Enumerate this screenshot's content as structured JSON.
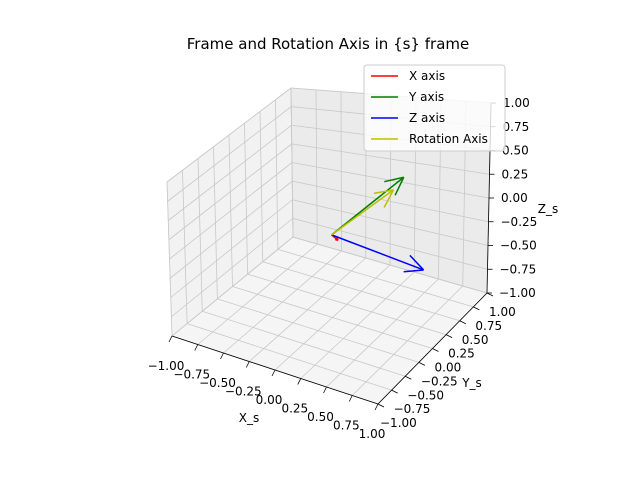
{
  "chart_data": {
    "type": "3d-quiver",
    "title": "Frame and Rotation Axis in {s} frame",
    "xlabel": "X_s",
    "ylabel": "Y_s",
    "zlabel": "Z_s",
    "xlim": [
      -1,
      1
    ],
    "ylim": [
      -1,
      1
    ],
    "zlim": [
      -1,
      1
    ],
    "x_ticks": [
      "−1.00",
      "−0.75",
      "−0.50",
      "−0.25",
      "0.00",
      "0.25",
      "0.50",
      "0.75",
      "1.00"
    ],
    "y_ticks": [
      "−1.00",
      "−0.75",
      "−0.50",
      "−0.25",
      "0.00",
      "0.25",
      "0.50",
      "0.75",
      "1.00"
    ],
    "z_ticks": [
      "−1.00",
      "−0.75",
      "−0.50",
      "−0.25",
      "0.00",
      "0.25",
      "0.50",
      "0.75",
      "1.00"
    ],
    "grid": true,
    "legend_position": "top-right",
    "origin": [
      0,
      0,
      0
    ],
    "series": [
      {
        "name": "X axis",
        "color": "#ff0000",
        "vector": [
          0.04,
          0.04,
          -0.08
        ]
      },
      {
        "name": "Y axis",
        "color": "#008000",
        "vector": [
          0.14,
          0.99,
          0.07
        ]
      },
      {
        "name": "Z axis",
        "color": "#0000ff",
        "vector": [
          0.99,
          -0.14,
          -0.03
        ]
      },
      {
        "name": "Rotation Axis",
        "color": "#bfbf00",
        "vector": [
          0.12,
          0.85,
          0.01
        ]
      }
    ]
  }
}
